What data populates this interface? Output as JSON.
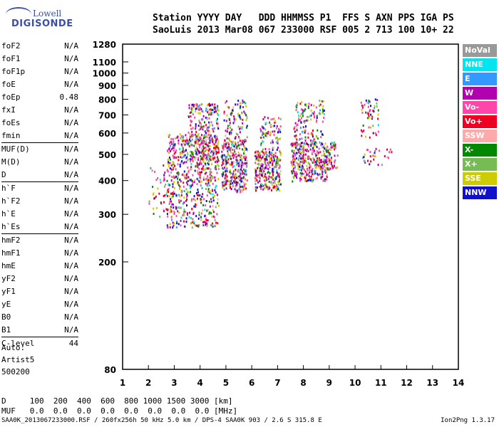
{
  "logo": {
    "line1": "Lowell",
    "line2": "DIGISONDE"
  },
  "header": {
    "row1": "Station YYYY DAY   DDD HHMMSS P1  FFS S AXN PPS IGA PS",
    "row2": "SaoLuis 2013 Mar08 067 233000 RSF 005 2 713 100 10+ 22"
  },
  "params": [
    {
      "name": "foF2",
      "value": "N/A",
      "sep": false
    },
    {
      "name": "foF1",
      "value": "N/A",
      "sep": false
    },
    {
      "name": "foF1p",
      "value": "N/A",
      "sep": false
    },
    {
      "name": "foE",
      "value": "N/A",
      "sep": false
    },
    {
      "name": "foEp",
      "value": "0.48",
      "sep": false
    },
    {
      "name": "fxI",
      "value": "N/A",
      "sep": false
    },
    {
      "name": "foEs",
      "value": "N/A",
      "sep": false
    },
    {
      "name": "fmin",
      "value": "N/A",
      "sep": false
    },
    {
      "name": "MUF(D)",
      "value": "N/A",
      "sep": true
    },
    {
      "name": "M(D)",
      "value": "N/A",
      "sep": false
    },
    {
      "name": "D",
      "value": "N/A",
      "sep": false
    },
    {
      "name": "h`F",
      "value": "N/A",
      "sep": true
    },
    {
      "name": "h`F2",
      "value": "N/A",
      "sep": false
    },
    {
      "name": "h`E",
      "value": "N/A",
      "sep": false
    },
    {
      "name": "h`Es",
      "value": "N/A",
      "sep": false
    },
    {
      "name": "hmF2",
      "value": "N/A",
      "sep": true
    },
    {
      "name": "hmF1",
      "value": "N/A",
      "sep": false
    },
    {
      "name": "hmE",
      "value": "N/A",
      "sep": false
    },
    {
      "name": "yF2",
      "value": "N/A",
      "sep": false
    },
    {
      "name": "yF1",
      "value": "N/A",
      "sep": false
    },
    {
      "name": "yE",
      "value": "N/A",
      "sep": false
    },
    {
      "name": "B0",
      "value": "N/A",
      "sep": false
    },
    {
      "name": "B1",
      "value": "N/A",
      "sep": false
    },
    {
      "name": "C-level",
      "value": "44",
      "sep": true
    }
  ],
  "auto": {
    "line1": "Auto:",
    "line2": "Artist5",
    "line3": "500200"
  },
  "bottom": {
    "d_row": "D     100  200  400  600  800 1000 1500 3000 [km]",
    "muf_row": "MUF   0.0  0.0  0.0  0.0  0.0  0.0  0.0  0.0 [MHz]"
  },
  "footer": {
    "left": "SAA0K_2013067233000.RSF / 260fx256h 50 kHz 5.0 km / DPS-4 SAA0K 903 / 2.6 S 315.8 E",
    "right": "Ion2Png 1.3.17"
  },
  "legend": [
    {
      "label": "NoVal",
      "color": "#999999"
    },
    {
      "label": "NNE",
      "color": "#00e5ee"
    },
    {
      "label": "E",
      "color": "#3399ff"
    },
    {
      "label": "W",
      "color": "#b000b0"
    },
    {
      "label": "Vo-",
      "color": "#ff44aa"
    },
    {
      "label": "Vo+",
      "color": "#ee0022"
    },
    {
      "label": "SSW",
      "color": "#ffaaaa"
    },
    {
      "label": "X-",
      "color": "#008800"
    },
    {
      "label": "X+",
      "color": "#77bb55"
    },
    {
      "label": "SSE",
      "color": "#cccc00"
    },
    {
      "label": "NNW",
      "color": "#1111cc"
    }
  ],
  "chart_data": {
    "type": "scatter",
    "title": "",
    "xlabel": "",
    "ylabel": "",
    "xlim": [
      1,
      14
    ],
    "ylim": [
      80,
      1280
    ],
    "y_scale": "log",
    "x_ticks": [
      "1",
      "2",
      "3",
      "4",
      "5",
      "6",
      "7",
      "8",
      "9",
      "10",
      "11",
      "12",
      "13",
      "14"
    ],
    "y_ticks": [
      80,
      200,
      300,
      400,
      500,
      600,
      700,
      800,
      900,
      1000,
      1100,
      1280
    ],
    "clusters": [
      {
        "x_range": [
          2.0,
          2.7
        ],
        "y_range": [
          280,
          460
        ],
        "density": 40
      },
      {
        "x_range": [
          2.7,
          4.7
        ],
        "y_range": [
          270,
          600
        ],
        "density": 700
      },
      {
        "x_range": [
          3.5,
          4.7
        ],
        "y_range": [
          480,
          780
        ],
        "density": 220
      },
      {
        "x_range": [
          4.8,
          5.8
        ],
        "y_range": [
          365,
          560
        ],
        "density": 320
      },
      {
        "x_range": [
          4.9,
          5.8
        ],
        "y_range": [
          560,
          800
        ],
        "density": 100
      },
      {
        "x_range": [
          6.1,
          7.1
        ],
        "y_range": [
          370,
          520
        ],
        "density": 280
      },
      {
        "x_range": [
          6.3,
          7.1
        ],
        "y_range": [
          520,
          700
        ],
        "density": 80
      },
      {
        "x_range": [
          7.5,
          8.9
        ],
        "y_range": [
          400,
          560
        ],
        "density": 380
      },
      {
        "x_range": [
          7.6,
          8.8
        ],
        "y_range": [
          560,
          800
        ],
        "density": 120
      },
      {
        "x_range": [
          8.9,
          9.3
        ],
        "y_range": [
          440,
          560
        ],
        "density": 60
      },
      {
        "x_range": [
          10.2,
          10.9
        ],
        "y_range": [
          680,
          810
        ],
        "density": 40
      },
      {
        "x_range": [
          10.2,
          10.9
        ],
        "y_range": [
          580,
          650
        ],
        "density": 15
      },
      {
        "x_range": [
          10.2,
          11.4
        ],
        "y_range": [
          460,
          530
        ],
        "density": 30
      }
    ]
  }
}
